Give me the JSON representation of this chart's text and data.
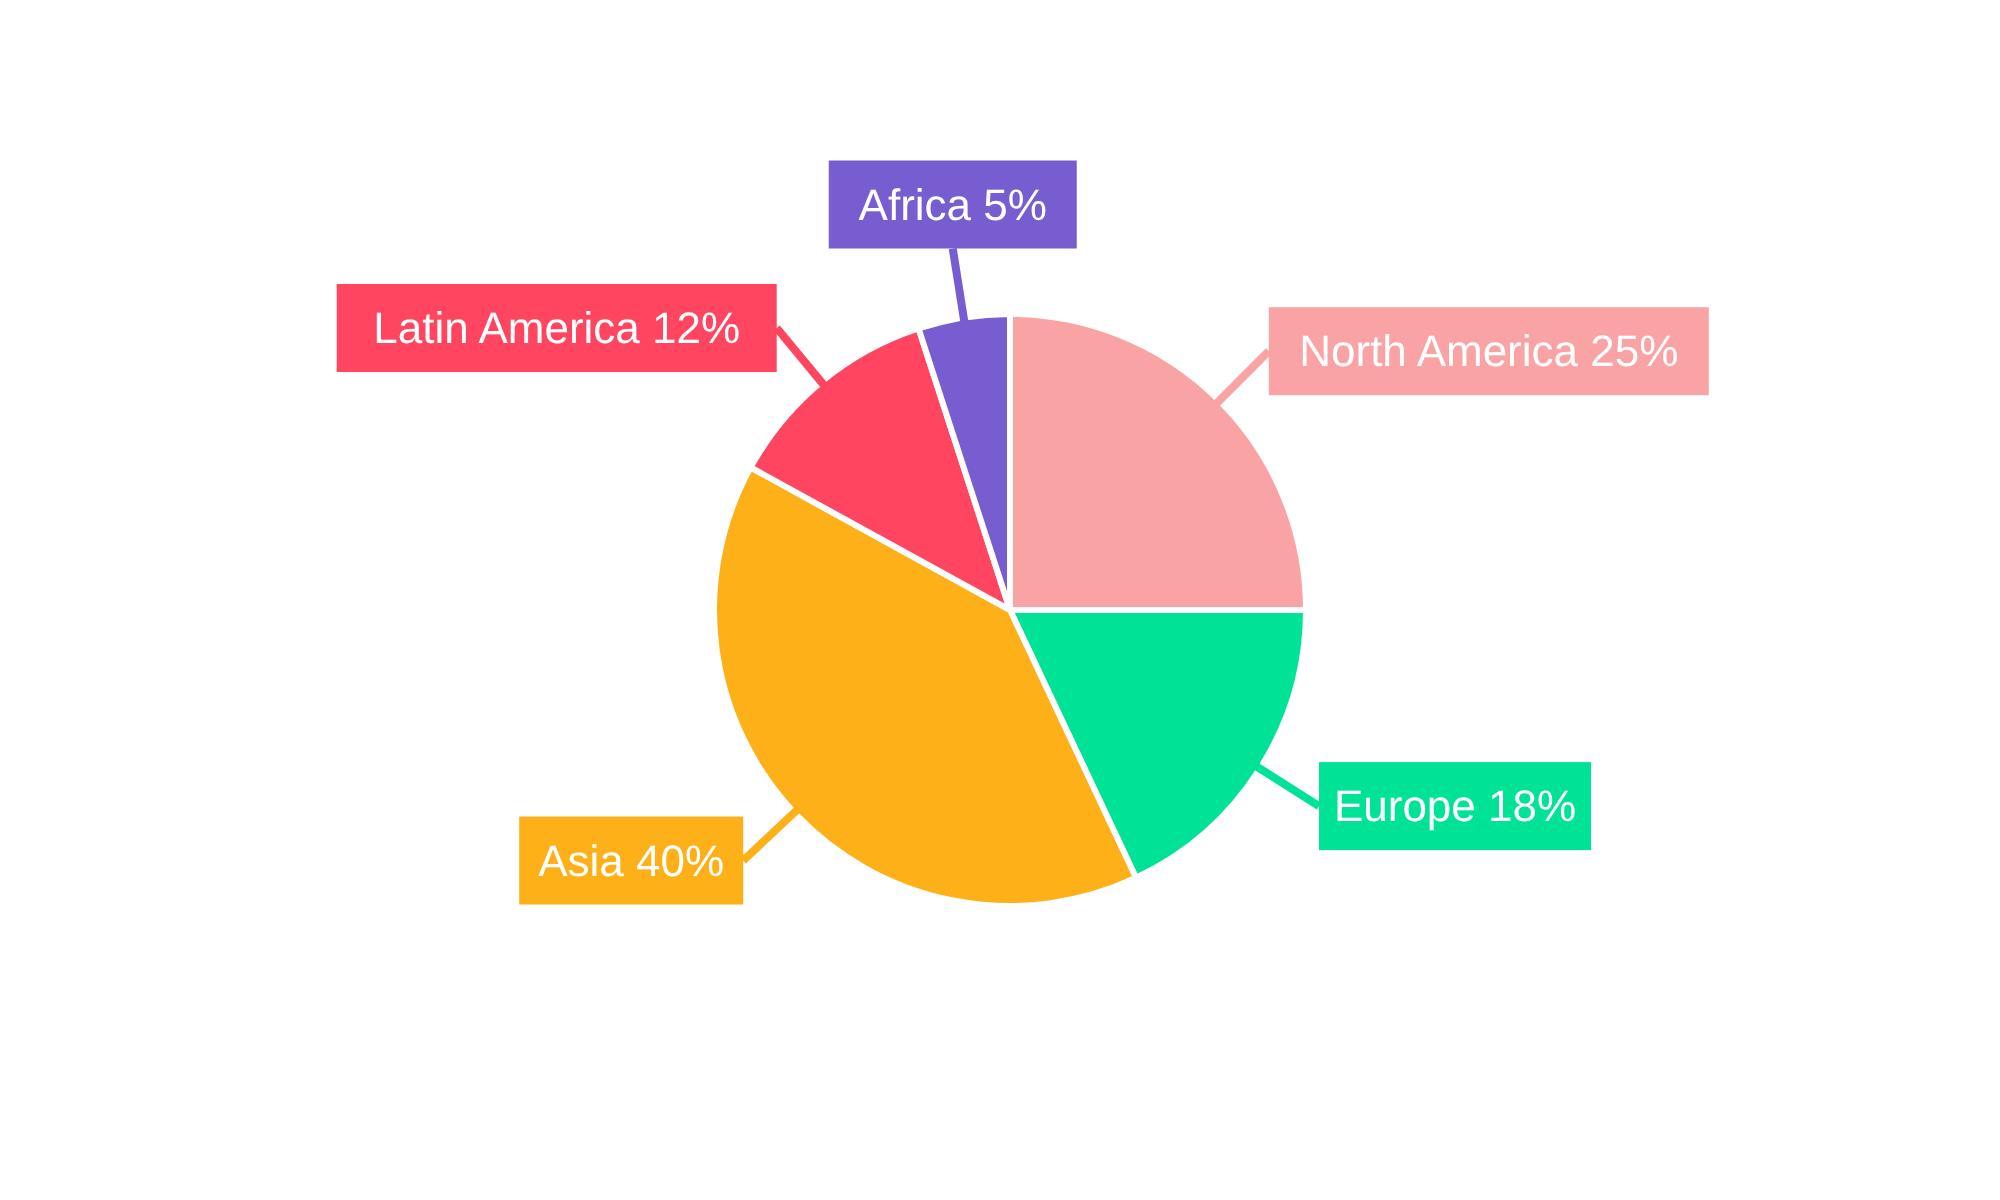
{
  "chart_data": {
    "type": "pie",
    "categories": [
      "North America",
      "Europe",
      "Asia",
      "Latin America",
      "Africa"
    ],
    "values": [
      25,
      18,
      40,
      12,
      5
    ],
    "value_labels": [
      "25%",
      "18%",
      "40%",
      "12%",
      "5%"
    ],
    "colors": [
      "#f9a3a4",
      "#00e396",
      "#feb019",
      "#ff4560",
      "#775dd0"
    ],
    "data_labels": true,
    "legend": false
  }
}
